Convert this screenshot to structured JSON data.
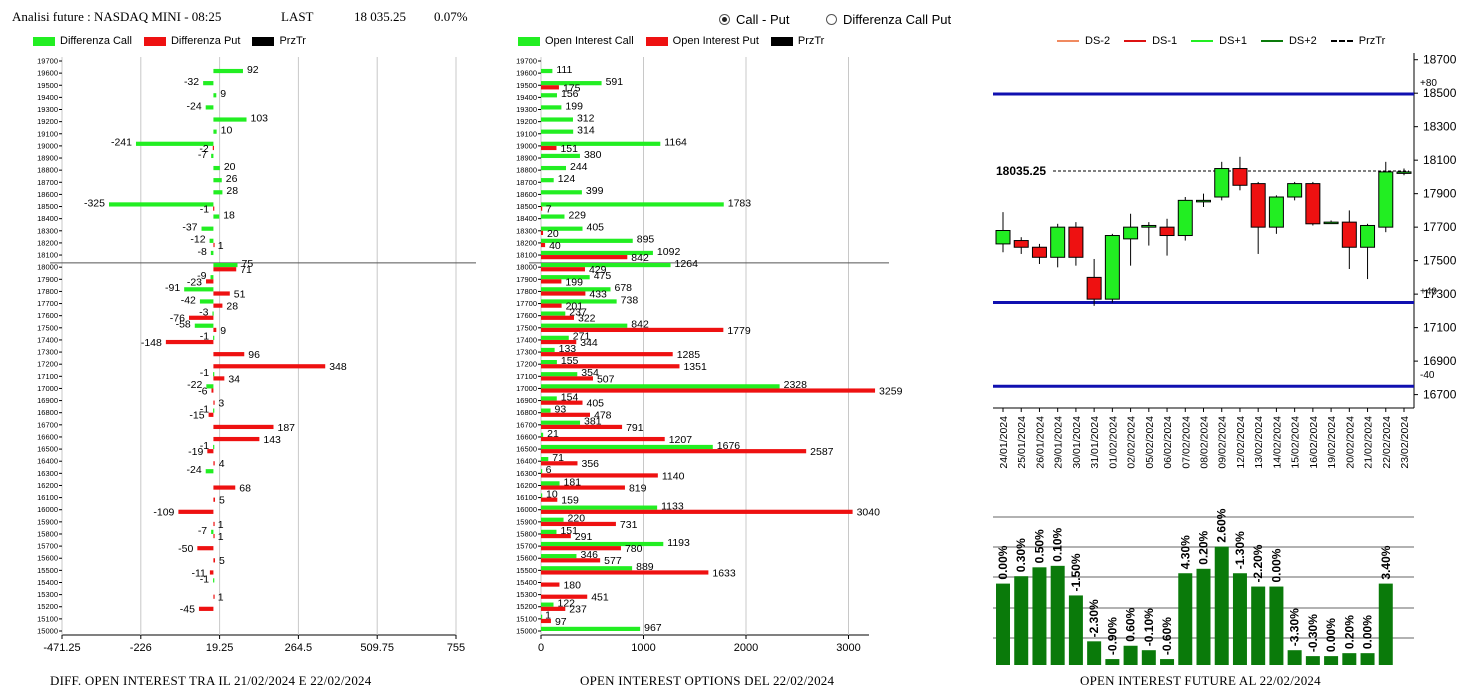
{
  "header": {
    "title": "Analisi future : NASDAQ MINI - 08:25",
    "last_label": "LAST",
    "last_value": "18 035.25",
    "change": "0.07%"
  },
  "view_options": {
    "call_put": "Call - Put",
    "diff_call_put": "Differenza Call Put",
    "selected": "call_put"
  },
  "colors": {
    "call": "#22ee22",
    "put": "#ee1111",
    "future": "#0a7a0a",
    "level_line": "#1010b0"
  },
  "legends": {
    "diff": [
      "Differenza Call",
      "Differenza Put",
      "PrzTr"
    ],
    "oi": [
      "Open Interest Call",
      "Open Interest Put",
      "PrzTr"
    ],
    "future": [
      "DS-2",
      "DS-1",
      "DS+1",
      "DS+2",
      "PrzTr"
    ]
  },
  "footers": {
    "diff": "DIFF. OPEN INTEREST TRA IL 21/02/2024 E 22/02/2024",
    "oi": "OPEN INTEREST OPTIONS DEL 22/02/2024",
    "future": "OPEN INTEREST FUTURE AL 22/02/2024"
  },
  "chart_data": [
    {
      "type": "bar",
      "orientation": "horizontal",
      "strikes": [
        19700,
        19600,
        19500,
        19400,
        19300,
        19200,
        19100,
        19000,
        18900,
        18800,
        18700,
        18600,
        18500,
        18400,
        18300,
        18200,
        18100,
        18000,
        17900,
        17800,
        17700,
        17600,
        17500,
        17400,
        17300,
        17200,
        17100,
        17000,
        16900,
        16800,
        16700,
        16600,
        16500,
        16400,
        16300,
        16200,
        16100,
        16000,
        15900,
        15800,
        15700,
        15600,
        15500,
        15400,
        15300,
        15200,
        15100,
        15000
      ],
      "series": [
        {
          "name": "Differenza Call",
          "values": [
            null,
            92,
            -32,
            9,
            -24,
            103,
            10,
            -241,
            -7,
            20,
            26,
            28,
            -325,
            18,
            -37,
            -12,
            -8,
            75,
            -9,
            -91,
            -42,
            -3,
            -58,
            -1,
            null,
            null,
            -1,
            -22,
            null,
            -1,
            null,
            null,
            -1,
            null,
            -24,
            null,
            null,
            null,
            null,
            -7,
            null,
            null,
            null,
            -1,
            null,
            null,
            null,
            null
          ]
        },
        {
          "name": "Differenza Put",
          "values": [
            null,
            null,
            null,
            null,
            null,
            null,
            null,
            -2,
            null,
            null,
            null,
            null,
            -1,
            null,
            null,
            1,
            null,
            71,
            -23,
            51,
            28,
            -76,
            9,
            -148,
            96,
            348,
            34,
            -6,
            3,
            -15,
            187,
            143,
            -19,
            4,
            null,
            68,
            5,
            -109,
            1,
            1,
            -50,
            5,
            -11,
            null,
            1,
            -45,
            null,
            null
          ]
        }
      ],
      "xlim": [
        -471.25,
        755
      ],
      "xticks": [
        "-471.25",
        "-226",
        "19.25",
        "264.5",
        "509.75",
        "755"
      ],
      "przTr_strike": 18035.25
    },
    {
      "type": "bar",
      "orientation": "horizontal",
      "strikes": [
        19700,
        19600,
        19500,
        19400,
        19300,
        19200,
        19100,
        19000,
        18900,
        18800,
        18700,
        18600,
        18500,
        18400,
        18300,
        18200,
        18100,
        18000,
        17900,
        17800,
        17700,
        17600,
        17500,
        17400,
        17300,
        17200,
        17100,
        17000,
        16900,
        16800,
        16700,
        16600,
        16500,
        16400,
        16300,
        16200,
        16100,
        16000,
        15900,
        15800,
        15700,
        15600,
        15500,
        15400,
        15300,
        15200,
        15100,
        15000
      ],
      "series": [
        {
          "name": "Open Interest Call",
          "values": [
            null,
            111,
            591,
            156,
            199,
            312,
            314,
            1164,
            380,
            244,
            124,
            399,
            1783,
            229,
            405,
            895,
            1092,
            1264,
            475,
            678,
            738,
            237,
            842,
            271,
            133,
            155,
            354,
            2328,
            154,
            93,
            381,
            21,
            1676,
            71,
            6,
            181,
            10,
            1133,
            220,
            151,
            1193,
            346,
            889,
            null,
            null,
            122,
            1,
            967
          ]
        },
        {
          "name": "Open Interest Put",
          "values": [
            null,
            null,
            175,
            null,
            null,
            null,
            null,
            151,
            null,
            null,
            null,
            null,
            7,
            null,
            20,
            40,
            842,
            429,
            199,
            433,
            201,
            322,
            1779,
            344,
            1285,
            1351,
            507,
            3259,
            405,
            478,
            791,
            1207,
            2587,
            356,
            1140,
            819,
            159,
            3040,
            731,
            291,
            780,
            577,
            1633,
            180,
            451,
            237,
            97,
            null
          ]
        }
      ],
      "xlim": [
        0,
        3200
      ],
      "xticks": [
        "0",
        "1000",
        "2000",
        "3000"
      ],
      "przTr_strike": 18035.25
    },
    {
      "type": "candlestick",
      "x": [
        "24/01/2024",
        "25/01/2024",
        "26/01/2024",
        "29/01/2024",
        "30/01/2024",
        "31/01/2024",
        "01/02/2024",
        "02/02/2024",
        "05/02/2024",
        "06/02/2024",
        "07/02/2024",
        "08/02/2024",
        "09/02/2024",
        "12/02/2024",
        "13/02/2024",
        "14/02/2024",
        "15/02/2024",
        "16/02/2024",
        "19/02/2024",
        "20/02/2024",
        "21/02/2024",
        "22/02/2024",
        "23/02/2024"
      ],
      "open": [
        17600,
        17620,
        17580,
        17520,
        17700,
        17400,
        17270,
        17630,
        17700,
        17700,
        17650,
        17860,
        17880,
        18050,
        17960,
        17700,
        17880,
        17960,
        17730,
        17730,
        17580,
        17700,
        18030
      ],
      "close": [
        17680,
        17580,
        17520,
        17700,
        17520,
        17270,
        17650,
        17700,
        17710,
        17650,
        17860,
        17860,
        18050,
        17950,
        17700,
        17880,
        17960,
        17720,
        17730,
        17580,
        17710,
        18030,
        18030
      ],
      "high": [
        17790,
        17640,
        17600,
        17720,
        17730,
        17510,
        17660,
        17780,
        17730,
        17750,
        17880,
        17900,
        18090,
        18120,
        17970,
        17890,
        17970,
        17970,
        17740,
        17800,
        17720,
        18090,
        18050
      ],
      "low": [
        17550,
        17540,
        17480,
        17460,
        17470,
        17230,
        17250,
        17470,
        17590,
        17530,
        17620,
        17820,
        17860,
        17920,
        17540,
        17660,
        17860,
        17710,
        17720,
        17450,
        17390,
        17670,
        18010
      ],
      "ylim": [
        16620,
        18740
      ],
      "yticks": [
        18700,
        18500,
        18300,
        18100,
        17900,
        17700,
        17500,
        17300,
        17100,
        16900,
        16700
      ],
      "levels": [
        {
          "label": "+80",
          "value": 18495
        },
        {
          "label": "+40",
          "value": 17250
        },
        {
          "label": "-40",
          "value": 16750
        }
      ],
      "last_price": 18035.25,
      "last_price_label": "18035.25"
    },
    {
      "type": "bar",
      "title": "OPEN INTEREST FUTURE AL 22/02/2024",
      "categories": [
        "24/01/2024",
        "25/01/2024",
        "26/01/2024",
        "29/01/2024",
        "30/01/2024",
        "31/01/2024",
        "01/02/2024",
        "02/02/2024",
        "05/02/2024",
        "06/02/2024",
        "07/02/2024",
        "08/02/2024",
        "09/02/2024",
        "12/02/2024",
        "13/02/2024",
        "14/02/2024",
        "15/02/2024",
        "16/02/2024",
        "19/02/2024",
        "20/02/2024",
        "21/02/2024",
        "22/02/2024",
        "23/02/2024"
      ],
      "relative_level": [
        0.55,
        0.6,
        0.66,
        0.67,
        0.47,
        0.16,
        0.04,
        0.13,
        0.1,
        0.04,
        0.62,
        0.65,
        0.8,
        0.62,
        0.53,
        0.53,
        0.1,
        0.06,
        0.06,
        0.08,
        0.08,
        0.55,
        null
      ],
      "labels": [
        "0.00%",
        "0.30%",
        "0.50%",
        "0.10%",
        "-1.50%",
        "-2.30%",
        "-0.90%",
        "0.60%",
        "-0.10%",
        "-0.60%",
        "4.30%",
        "0.20%",
        "2.60%",
        "-1.30%",
        "-2.20%",
        "0.00%",
        "-3.30%",
        "-0.30%",
        "0.00%",
        "0.20%",
        "0.00%",
        "3.40%",
        ""
      ]
    }
  ]
}
